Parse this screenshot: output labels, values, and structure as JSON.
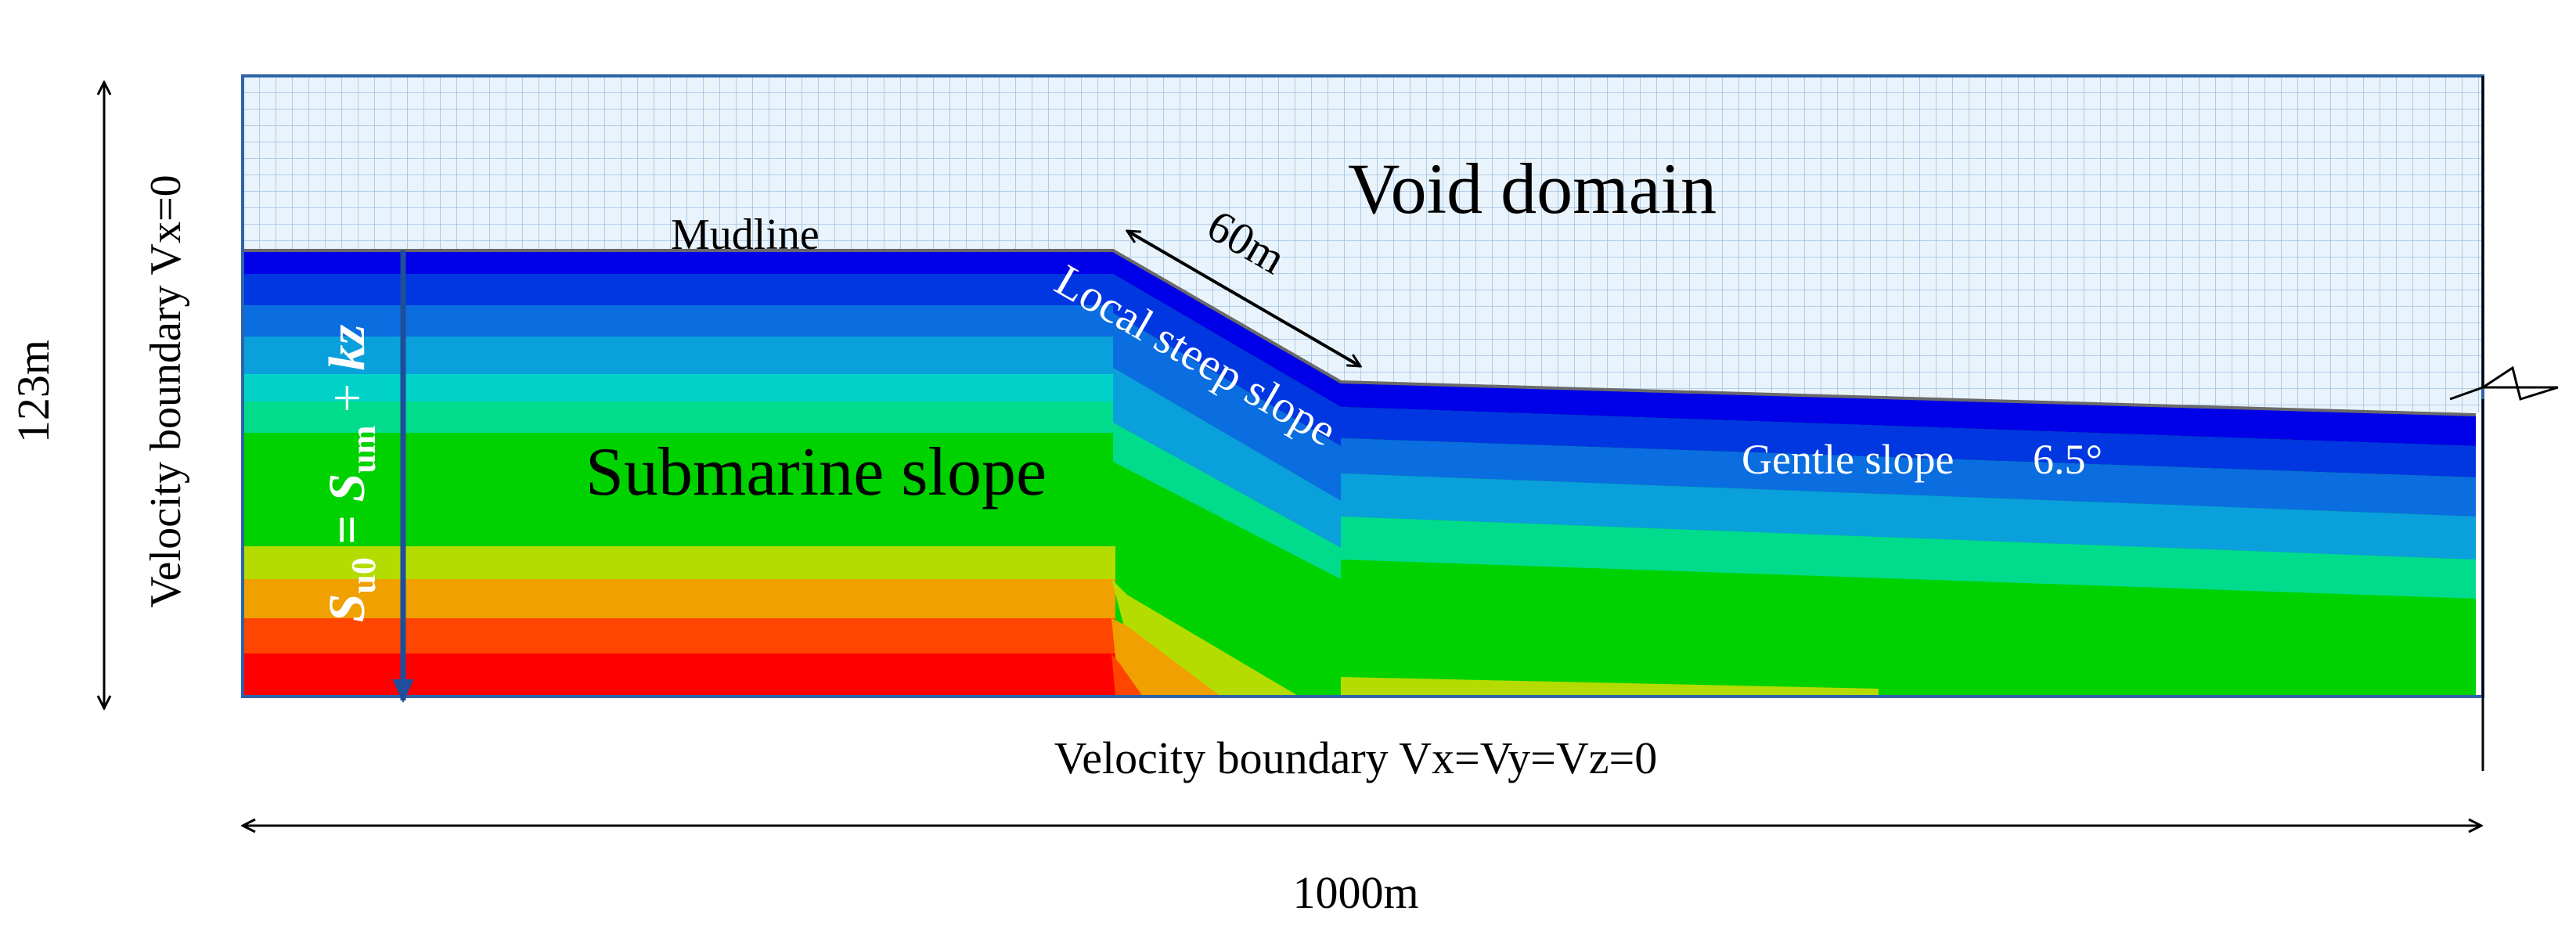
{
  "labels": {
    "void_domain": "Void domain",
    "mudline": "Mudline",
    "length_60": "60m",
    "local_steep_slope": "Local steep slope",
    "submarine_slope": "Submarine slope",
    "gentle_slope": "Gentle slope",
    "gentle_angle": "6.5°",
    "height_123": "123m",
    "velocity_left": "Velocity boundary Vx=0",
    "velocity_bottom": "Velocity boundary Vx=Vy=Vz=0",
    "width_1000": "1000m",
    "formula_S": "S",
    "formula_u0": "u0",
    "formula_eq": " = ",
    "formula_um": "um",
    "formula_plus": " + ",
    "formula_kz": "kz"
  },
  "colors": {
    "void_fill": "#e9f3fb",
    "void_grid": "#9fc1e2",
    "domain_border": "#2e63a8",
    "arrow": "#000000",
    "depth_arrow": "#1f4e9a",
    "label_white": "#ffffff",
    "layers": [
      "#0000e8",
      "#0037e0",
      "#0a6ee0",
      "#0aa0dc",
      "#00d2c8",
      "#00dc8c",
      "#00d200",
      "#14d200",
      "#b4dc00",
      "#f0a000",
      "#ff4600",
      "#ff0000"
    ]
  }
}
